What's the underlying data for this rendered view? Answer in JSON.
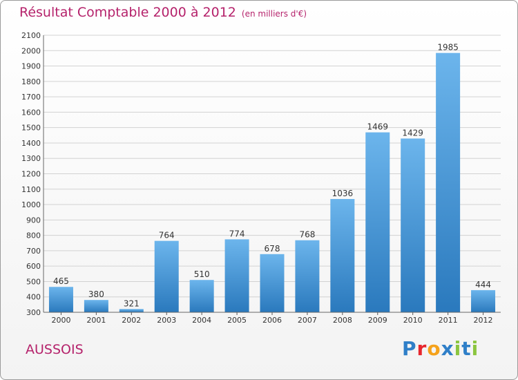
{
  "header": {
    "title": "Résultat Comptable 2000 à 2012",
    "subtitle": "(en milliers d'€)"
  },
  "commune": "AUSSOIS",
  "logo": {
    "letters": [
      "P",
      "r",
      "o",
      "x",
      "i",
      "t",
      "i"
    ],
    "colors": [
      "#2f7fc8",
      "#e7262d",
      "#f5a21b",
      "#2f7fc8",
      "#8bc53f",
      "#2f7fc8",
      "#8bc53f"
    ]
  },
  "colors": {
    "bar_top": "#6cb5ec",
    "bar_bottom": "#2a79bd",
    "grid": "#d2d2d2",
    "title": "#b5226b"
  },
  "chart_data": {
    "type": "bar",
    "title": "Résultat Comptable 2000 à 2012",
    "subtitle": "(en milliers d'€)",
    "categories": [
      "2000",
      "2001",
      "2002",
      "2003",
      "2004",
      "2005",
      "2006",
      "2007",
      "2008",
      "2009",
      "2010",
      "2011",
      "2012"
    ],
    "values": [
      465,
      380,
      321,
      764,
      510,
      774,
      678,
      768,
      1036,
      1469,
      1429,
      1985,
      444
    ],
    "ylim": [
      300,
      2100
    ],
    "yticks": [
      300,
      400,
      500,
      600,
      700,
      800,
      900,
      1000,
      1100,
      1200,
      1300,
      1400,
      1500,
      1600,
      1700,
      1800,
      1900,
      2000,
      2100
    ],
    "grid": true,
    "data_labels": true
  }
}
